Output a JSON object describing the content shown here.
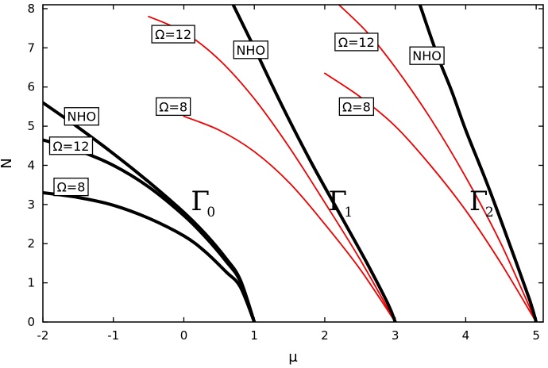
{
  "chart_data": {
    "type": "line",
    "title": "",
    "xlabel": "μ",
    "ylabel": "N",
    "xlim": [
      -2,
      5.1
    ],
    "ylim": [
      0,
      8.1
    ],
    "xticks": [
      -2,
      -1,
      0,
      1,
      2,
      3,
      4,
      5
    ],
    "yticks": [
      0,
      1,
      2,
      3,
      4,
      5,
      6,
      7,
      8
    ],
    "grid": false,
    "colors": {
      "exact": "#000000",
      "approx": "#ee0000"
    },
    "families": [
      {
        "name": "Γ",
        "subscript": "0",
        "label_pos": [
          0.1,
          3.1
        ],
        "series": [
          {
            "name": "NHO",
            "color": "#000000",
            "x": [
              -2,
              -1.5,
              -1,
              -0.5,
              0,
              0.3,
              0.6,
              0.8,
              1.0
            ],
            "y": [
              5.6,
              4.97,
              4.3,
              3.58,
              2.8,
              2.26,
              1.62,
              1.08,
              0.0
            ]
          },
          {
            "name": "Ω=12",
            "color": "#000000",
            "x": [
              -2,
              -1.5,
              -1,
              -0.5,
              0,
              0.3,
              0.6,
              0.8,
              1.0
            ],
            "y": [
              4.65,
              4.38,
              4.0,
              3.45,
              2.72,
              2.18,
              1.55,
              1.04,
              0.0
            ]
          },
          {
            "name": "Ω=8",
            "color": "#000000",
            "x": [
              -2,
              -1.5,
              -1,
              -0.5,
              0,
              0.3,
              0.6,
              0.8,
              1.0
            ],
            "y": [
              3.3,
              3.18,
              2.98,
              2.65,
              2.2,
              1.8,
              1.28,
              0.9,
              0.0
            ]
          }
        ]
      },
      {
        "name": "Γ",
        "subscript": "1",
        "label_pos": [
          2.05,
          3.1
        ],
        "series": [
          {
            "name": "NHO",
            "color": "#000000",
            "x": [
              0.7,
              1.0,
              1.4,
              1.8,
              2.2,
              2.6,
              2.9,
              3.0
            ],
            "y": [
              8.1,
              7.0,
              5.5,
              4.1,
              2.8,
              1.5,
              0.45,
              0.0
            ]
          },
          {
            "name": "Ω=12",
            "color": "#ee0000",
            "x": [
              -0.5,
              0.0,
              0.5,
              1.0,
              1.5,
              2.0,
              2.5,
              3.0
            ],
            "y": [
              7.8,
              7.4,
              6.7,
              5.7,
              4.45,
              3.05,
              1.6,
              0.0
            ]
          },
          {
            "name": "Ω=8",
            "color": "#ee0000",
            "x": [
              0.0,
              0.5,
              1.0,
              1.5,
              2.0,
              2.5,
              3.0
            ],
            "y": [
              5.25,
              4.9,
              4.35,
              3.55,
              2.5,
              1.35,
              0.0
            ]
          }
        ]
      },
      {
        "name": "Γ",
        "subscript": "2",
        "label_pos": [
          4.05,
          3.1
        ],
        "series": [
          {
            "name": "NHO",
            "color": "#000000",
            "x": [
              3.35,
              3.6,
              3.8,
              4.0,
              4.3,
              4.6,
              4.9,
              5.0
            ],
            "y": [
              8.1,
              6.8,
              5.9,
              4.9,
              3.55,
              2.1,
              0.6,
              0.0
            ]
          },
          {
            "name": "Ω=12",
            "color": "#ee0000",
            "x": [
              2.2,
              2.6,
              3.0,
              3.5,
              4.0,
              4.5,
              5.0
            ],
            "y": [
              8.1,
              7.4,
              6.5,
              5.2,
              3.7,
              2.0,
              0.0
            ]
          },
          {
            "name": "Ω=8",
            "color": "#ee0000",
            "x": [
              2.0,
              2.5,
              3.0,
              3.5,
              4.0,
              4.5,
              5.0
            ],
            "y": [
              6.35,
              5.75,
              5.0,
              4.0,
              2.85,
              1.5,
              0.0
            ]
          }
        ]
      }
    ],
    "annotations": [
      {
        "text": "NHO",
        "x": -1.45,
        "y": 5.25
      },
      {
        "text": "Ω=12",
        "x": -1.6,
        "y": 4.5
      },
      {
        "text": "Ω=8",
        "x": -1.6,
        "y": 3.45
      },
      {
        "text": "Ω=12",
        "x": -0.15,
        "y": 7.35
      },
      {
        "text": "NHO",
        "x": 0.95,
        "y": 6.95
      },
      {
        "text": "Ω=8",
        "x": -0.15,
        "y": 5.5
      },
      {
        "text": "Ω=12",
        "x": 2.45,
        "y": 7.15
      },
      {
        "text": "NHO",
        "x": 3.45,
        "y": 6.8
      },
      {
        "text": "Ω=8",
        "x": 2.45,
        "y": 5.5
      }
    ]
  }
}
